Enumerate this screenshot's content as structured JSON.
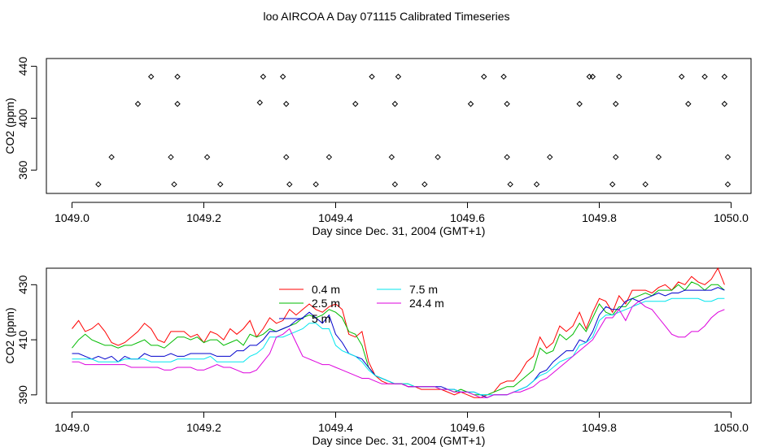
{
  "title": "loo AIRCOA A  Day 071115  Calibrated Timeseries",
  "colors": {
    "0.4 m": "#ff0000",
    "2.5 m": "#00bb00",
    "5 m": "#0000cc",
    "7.5 m": "#00e5ee",
    "24.4 m": "#dd00dd"
  },
  "chart_data": [
    {
      "type": "scatter",
      "xlabel": "Day since Dec. 31, 2004 (GMT+1)",
      "ylabel": "CO2 (ppm)",
      "xlim": [
        1049.0,
        1050.0
      ],
      "ylim": [
        342,
        446
      ],
      "xticks": [
        "1049.0",
        "1049.2",
        "1049.4",
        "1049.6",
        "1049.8",
        "1050.0"
      ],
      "yticks": [
        "360",
        "400",
        "440"
      ],
      "x": [
        1049.04,
        1049.06,
        1049.1,
        1049.12,
        1049.15,
        1049.155,
        1049.16,
        1049.16,
        1049.205,
        1049.225,
        1049.285,
        1049.29,
        1049.32,
        1049.325,
        1049.325,
        1049.33,
        1049.37,
        1049.39,
        1049.43,
        1049.455,
        1049.485,
        1049.49,
        1049.49,
        1049.495,
        1049.535,
        1049.555,
        1049.605,
        1049.625,
        1049.655,
        1049.66,
        1049.66,
        1049.665,
        1049.705,
        1049.725,
        1049.77,
        1049.785,
        1049.79,
        1049.82,
        1049.825,
        1049.825,
        1049.83,
        1049.87,
        1049.89,
        1049.925,
        1049.935,
        1049.96,
        1049.99,
        1049.99,
        1049.995,
        1049.995
      ],
      "y": [
        349,
        370,
        411,
        432,
        370,
        349,
        411,
        432,
        370,
        349,
        412,
        432,
        432,
        370,
        411,
        349,
        349,
        370,
        411,
        432,
        370,
        411,
        349,
        432,
        349,
        370,
        411,
        432,
        432,
        370,
        411,
        349,
        349,
        370,
        411,
        432,
        432,
        349,
        370,
        411,
        432,
        349,
        370,
        432,
        411,
        432,
        432,
        411,
        370,
        349
      ]
    },
    {
      "type": "line",
      "xlabel": "Day since Dec. 31, 2004 (GMT+1)",
      "ylabel": "CO2 (ppm)",
      "xlim": [
        1049.0,
        1050.0
      ],
      "ylim": [
        387,
        436
      ],
      "xticks": [
        "1049.0",
        "1049.2",
        "1049.4",
        "1049.6",
        "1049.8",
        "1050.0"
      ],
      "yticks": [
        "390",
        "410",
        "430"
      ],
      "legend": [
        "0.4 m",
        "2.5 m",
        "5 m",
        "7.5 m",
        "24.4 m"
      ],
      "legend_placement": "top-left",
      "x_start": 1049.0,
      "x_step": 0.01,
      "series": [
        {
          "name": "0.4 m",
          "values": [
            414,
            417,
            413,
            414,
            416,
            413,
            409,
            408,
            409,
            411,
            413,
            416,
            414,
            410,
            409,
            413,
            413,
            413,
            411,
            412,
            409,
            413,
            412,
            410,
            414,
            412,
            414,
            417,
            411,
            414,
            418,
            416,
            417,
            421,
            419,
            421,
            423,
            421,
            420,
            422,
            423,
            421,
            412,
            411,
            413,
            402,
            397,
            395,
            394,
            394,
            394,
            393,
            393,
            392,
            392,
            392,
            392,
            391,
            390,
            391,
            390,
            389,
            389,
            390,
            391,
            394,
            395,
            395,
            398,
            402,
            404,
            411,
            407,
            409,
            415,
            413,
            415,
            420,
            414,
            420,
            425,
            424,
            420,
            426,
            423,
            428,
            428,
            428,
            427,
            429,
            430,
            428,
            431,
            430,
            433,
            431,
            430,
            432,
            436,
            430
          ]
        },
        {
          "name": "2.5 m",
          "values": [
            407,
            410,
            412,
            410,
            409,
            408,
            408,
            407,
            408,
            408,
            409,
            410,
            408,
            408,
            407,
            409,
            411,
            411,
            410,
            411,
            409,
            410,
            410,
            408,
            409,
            410,
            408,
            412,
            411,
            412,
            414,
            413,
            414,
            415,
            416,
            418,
            419,
            418,
            419,
            421,
            420,
            418,
            413,
            412,
            408,
            400,
            397,
            396,
            395,
            394,
            394,
            394,
            393,
            393,
            393,
            393,
            392,
            392,
            391,
            392,
            391,
            390,
            390,
            390,
            391,
            392,
            393,
            393,
            395,
            397,
            399,
            407,
            405,
            406,
            412,
            410,
            412,
            416,
            413,
            418,
            423,
            420,
            419,
            422,
            422,
            425,
            426,
            427,
            426,
            428,
            428,
            428,
            430,
            428,
            431,
            430,
            428,
            430,
            430,
            428
          ]
        },
        {
          "name": "5 m",
          "values": [
            405,
            405,
            404,
            403,
            404,
            403,
            404,
            402,
            404,
            403,
            403,
            405,
            404,
            404,
            404,
            405,
            404,
            404,
            405,
            405,
            405,
            405,
            404,
            404,
            404,
            406,
            406,
            408,
            408,
            410,
            413,
            413,
            414,
            415,
            417,
            418,
            420,
            418,
            416,
            419,
            412,
            409,
            405,
            404,
            403,
            400,
            397,
            396,
            395,
            394,
            394,
            393,
            393,
            393,
            393,
            393,
            393,
            392,
            392,
            391,
            391,
            391,
            390,
            389,
            390,
            390,
            390,
            391,
            392,
            393,
            395,
            398,
            399,
            402,
            404,
            406,
            406,
            410,
            409,
            413,
            419,
            422,
            421,
            421,
            424,
            425,
            424,
            425,
            426,
            427,
            426,
            427,
            427,
            428,
            428,
            428,
            428,
            428,
            429,
            428
          ]
        },
        {
          "name": "7.5 m",
          "values": [
            403,
            403,
            403,
            403,
            402,
            402,
            402,
            402,
            403,
            403,
            403,
            403,
            402,
            402,
            402,
            402,
            403,
            403,
            403,
            403,
            403,
            404,
            402,
            402,
            402,
            402,
            402,
            404,
            405,
            407,
            411,
            411,
            411,
            412,
            413,
            414,
            416,
            416,
            414,
            414,
            408,
            406,
            405,
            404,
            402,
            399,
            397,
            396,
            395,
            394,
            394,
            394,
            393,
            393,
            393,
            393,
            392,
            392,
            392,
            391,
            391,
            391,
            390,
            390,
            390,
            390,
            390,
            391,
            392,
            393,
            395,
            397,
            398,
            400,
            402,
            403,
            404,
            408,
            409,
            411,
            417,
            419,
            419,
            420,
            421,
            422,
            423,
            424,
            424,
            424,
            424,
            425,
            425,
            425,
            425,
            425,
            424,
            424,
            425,
            425
          ]
        },
        {
          "name": "24.4 m",
          "values": [
            402,
            402,
            401,
            401,
            401,
            401,
            401,
            401,
            401,
            400,
            400,
            400,
            400,
            400,
            399,
            399,
            400,
            400,
            400,
            399,
            399,
            400,
            401,
            400,
            400,
            399,
            398,
            398,
            399,
            402,
            405,
            411,
            412,
            414,
            409,
            404,
            403,
            402,
            401,
            401,
            400,
            399,
            398,
            397,
            396,
            396,
            395,
            394,
            394,
            394,
            394,
            393,
            393,
            393,
            393,
            393,
            392,
            392,
            391,
            391,
            391,
            390,
            389,
            389,
            390,
            390,
            390,
            391,
            391,
            392,
            393,
            395,
            396,
            398,
            400,
            402,
            404,
            406,
            408,
            410,
            414,
            418,
            418,
            421,
            417,
            422,
            424,
            422,
            421,
            418,
            415,
            412,
            411,
            411,
            413,
            413,
            415,
            418,
            420,
            421
          ]
        }
      ]
    }
  ]
}
